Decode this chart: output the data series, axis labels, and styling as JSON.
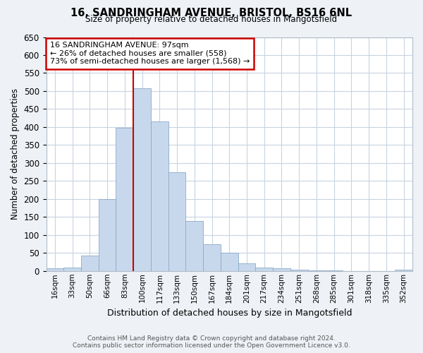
{
  "title": "16, SANDRINGHAM AVENUE, BRISTOL, BS16 6NL",
  "subtitle": "Size of property relative to detached houses in Mangotsfield",
  "xlabel": "Distribution of detached houses by size in Mangotsfield",
  "ylabel": "Number of detached properties",
  "bar_labels": [
    "16sqm",
    "33sqm",
    "50sqm",
    "66sqm",
    "83sqm",
    "100sqm",
    "117sqm",
    "133sqm",
    "150sqm",
    "167sqm",
    "184sqm",
    "201sqm",
    "217sqm",
    "234sqm",
    "251sqm",
    "268sqm",
    "285sqm",
    "301sqm",
    "318sqm",
    "335sqm",
    "352sqm"
  ],
  "bar_values": [
    8,
    10,
    43,
    200,
    397,
    507,
    415,
    275,
    138,
    75,
    50,
    22,
    10,
    8,
    3,
    2,
    2,
    0,
    0,
    0,
    3
  ],
  "bar_color": "#c8d8ec",
  "bar_edge_color": "#8aaac8",
  "vline_x": 5,
  "vline_color": "#cc0000",
  "annotation_lines": [
    "16 SANDRINGHAM AVENUE: 97sqm",
    "← 26% of detached houses are smaller (558)",
    "73% of semi-detached houses are larger (1,568) →"
  ],
  "annotation_box_color": "#ffffff",
  "annotation_box_edge": "#cc0000",
  "ylim": [
    0,
    650
  ],
  "yticks": [
    0,
    50,
    100,
    150,
    200,
    250,
    300,
    350,
    400,
    450,
    500,
    550,
    600,
    650
  ],
  "footer_line1": "Contains HM Land Registry data © Crown copyright and database right 2024.",
  "footer_line2": "Contains public sector information licensed under the Open Government Licence v3.0.",
  "bg_color": "#eef2f7",
  "plot_bg_color": "#ffffff",
  "grid_color": "#c8d4e0"
}
